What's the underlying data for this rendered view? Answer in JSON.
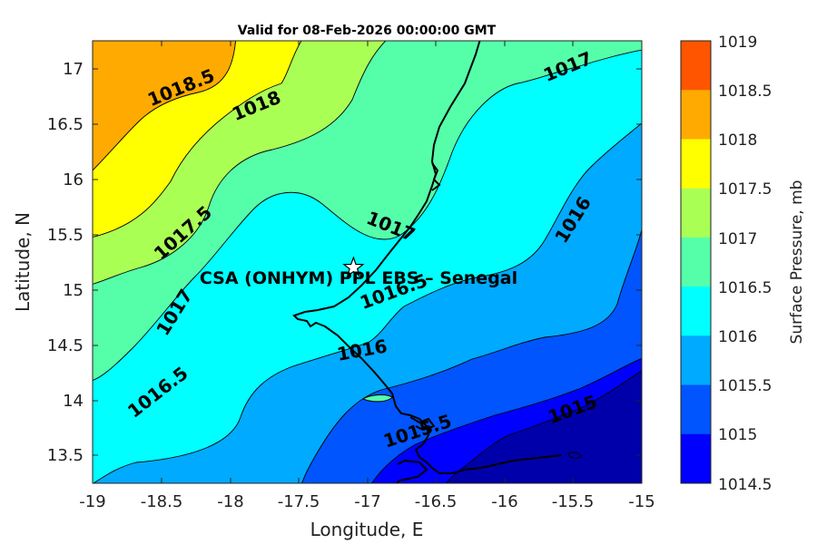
{
  "title": "Valid for 08-Feb-2026 00:00:00 GMT",
  "xlabel": "Longitude, E",
  "ylabel": "Latitude, N",
  "x_ticks": [
    "-19",
    "-18.5",
    "-18",
    "-17.5",
    "-17",
    "-16.5",
    "-16",
    "-15.5",
    "-15"
  ],
  "y_ticks": [
    "17",
    "16.5",
    "16",
    "15.5",
    "15",
    "14.5",
    "14",
    "13.5"
  ],
  "site": {
    "label": "CSA (ONHYM) PPL EBS – Senegal",
    "lon": -17.1,
    "lat": 15.2
  },
  "contour_labels": [
    "1018.5",
    "1018",
    "1017.5",
    "1017",
    "1017",
    "1017",
    "1016.5",
    "1016.5",
    "1016",
    "1016",
    "1015.5",
    "1015"
  ],
  "colorbar": {
    "label": "Surface Pressure, mb",
    "levels": [
      {
        "value": "1019",
        "color": "#ff5500"
      },
      {
        "value": "1018.5",
        "color": "#ffaa00"
      },
      {
        "value": "1018",
        "color": "#ffff00"
      },
      {
        "value": "1017.5",
        "color": "#aaff55"
      },
      {
        "value": "1017",
        "color": "#55ffaa"
      },
      {
        "value": "1016.5",
        "color": "#00ffff"
      },
      {
        "value": "1016",
        "color": "#00aaff"
      },
      {
        "value": "1015.5",
        "color": "#0055ff"
      },
      {
        "value": "1015",
        "color": "#0000ff"
      },
      {
        "value": "1014.5",
        "color": "#0000aa"
      }
    ]
  }
}
